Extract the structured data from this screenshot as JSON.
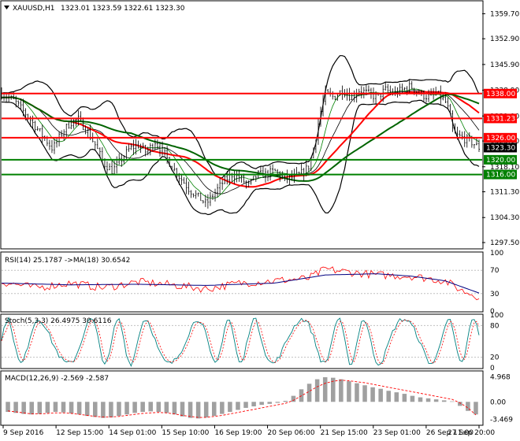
{
  "chart_data": {
    "type": "candlestick",
    "symbol_header": "XAUUSD,H1",
    "ohlc_header": "1323.01 1323.59 1322.61 1323.30",
    "price_axis": {
      "range": [
        1296,
        1363
      ],
      "ticks": [
        "1359.70",
        "1352.90",
        "1345.90",
        "1338.90",
        "1331.90",
        "1325.10",
        "1318.10",
        "1311.30",
        "1304.30",
        "1297.50"
      ],
      "tick_values": [
        1359.7,
        1352.9,
        1345.9,
        1338.9,
        1331.9,
        1325.1,
        1318.1,
        1311.3,
        1304.3,
        1297.5
      ]
    },
    "levels": [
      {
        "label": "1338.00",
        "value": 1338.0,
        "color": "#ff0000"
      },
      {
        "label": "1331.23",
        "value": 1331.23,
        "color": "#ff0000"
      },
      {
        "label": "1326.00",
        "value": 1326.0,
        "color": "#ff0000"
      },
      {
        "label": "1320.00",
        "value": 1320.0,
        "color": "#008000"
      },
      {
        "label": "1316.00",
        "value": 1316.0,
        "color": "#008000"
      }
    ],
    "current_price": {
      "label": "1323.30",
      "value": 1323.3
    },
    "x_labels": [
      "9 Sep 2016",
      "12 Sep 15:00",
      "14 Sep 01:00",
      "15 Sep 10:00",
      "16 Sep 19:00",
      "20 Sep 06:00",
      "21 Sep 15:00",
      "23 Sep 01:00",
      "26 Sep 11:00",
      "27 Sep 20:00"
    ],
    "price_path": [
      [
        0,
        1338
      ],
      [
        3,
        1336
      ],
      [
        6,
        1332
      ],
      [
        8,
        1329
      ],
      [
        10,
        1326
      ],
      [
        12,
        1323
      ],
      [
        14,
        1327
      ],
      [
        16,
        1330
      ],
      [
        18,
        1331
      ],
      [
        20,
        1328
      ],
      [
        22,
        1324
      ],
      [
        24,
        1319
      ],
      [
        26,
        1317
      ],
      [
        28,
        1320
      ],
      [
        30,
        1323
      ],
      [
        32,
        1324
      ],
      [
        34,
        1322
      ],
      [
        36,
        1325
      ],
      [
        38,
        1322
      ],
      [
        40,
        1318
      ],
      [
        42,
        1315
      ],
      [
        44,
        1312
      ],
      [
        46,
        1310
      ],
      [
        48,
        1308
      ],
      [
        50,
        1311
      ],
      [
        52,
        1314
      ],
      [
        54,
        1316
      ],
      [
        56,
        1315
      ],
      [
        58,
        1313
      ],
      [
        60,
        1316
      ],
      [
        62,
        1316
      ],
      [
        64,
        1317
      ],
      [
        66,
        1315
      ],
      [
        68,
        1315
      ],
      [
        70,
        1316
      ],
      [
        72,
        1318
      ],
      [
        73,
        1322
      ],
      [
        74,
        1328
      ],
      [
        75,
        1334
      ],
      [
        76,
        1338
      ],
      [
        78,
        1337
      ],
      [
        80,
        1339
      ],
      [
        82,
        1337
      ],
      [
        84,
        1339
      ],
      [
        86,
        1338
      ],
      [
        88,
        1337
      ],
      [
        90,
        1339
      ],
      [
        92,
        1338
      ],
      [
        94,
        1339
      ],
      [
        96,
        1340
      ],
      [
        98,
        1338
      ],
      [
        100,
        1337
      ],
      [
        102,
        1338
      ],
      [
        104,
        1336
      ],
      [
        105,
        1333
      ],
      [
        106,
        1327
      ],
      [
        108,
        1326
      ],
      [
        110,
        1325
      ],
      [
        112,
        1323.3
      ]
    ],
    "rsi": {
      "header": "RSI(14) 25.1787 ->MA(18) 30.6542",
      "range": [
        0,
        100
      ],
      "ticks": [
        "100",
        "70",
        "30",
        "0"
      ],
      "tick_values": [
        100,
        70,
        30,
        0
      ],
      "points": [
        [
          0,
          50
        ],
        [
          8,
          40
        ],
        [
          16,
          48
        ],
        [
          24,
          40
        ],
        [
          32,
          50
        ],
        [
          40,
          45
        ],
        [
          48,
          38
        ],
        [
          56,
          48
        ],
        [
          64,
          52
        ],
        [
          72,
          56
        ],
        [
          76,
          72
        ],
        [
          80,
          68
        ],
        [
          88,
          62
        ],
        [
          96,
          60
        ],
        [
          104,
          52
        ],
        [
          108,
          35
        ],
        [
          112,
          25
        ]
      ],
      "ma_points": [
        [
          0,
          48
        ],
        [
          16,
          45
        ],
        [
          32,
          46
        ],
        [
          48,
          44
        ],
        [
          64,
          48
        ],
        [
          76,
          62
        ],
        [
          88,
          64
        ],
        [
          96,
          60
        ],
        [
          104,
          52
        ],
        [
          112,
          31
        ]
      ]
    },
    "stoch": {
      "header": "Stoch(5,3,3) 26.4975 30.6116",
      "range": [
        0,
        100
      ],
      "ticks": [
        "100",
        "80",
        "20",
        "0"
      ],
      "tick_values": [
        100,
        80,
        20,
        0
      ]
    },
    "macd": {
      "header": "MACD(12,26,9) -2.569 -2.587",
      "range": [
        -4.5,
        6
      ],
      "ticks": [
        "4.968",
        "0.00",
        "-3.469"
      ],
      "tick_values": [
        4.968,
        0.0,
        -3.469
      ],
      "histogram": [
        -2,
        -2.2,
        -2.4,
        -2.5,
        -2.4,
        -2.2,
        -2,
        -2.1,
        -2.3,
        -2.5,
        -2.8,
        -3,
        -3.2,
        -3.1,
        -2.8,
        -2.5,
        -2.2,
        -2,
        -1.9,
        -2,
        -2.2,
        -2.5,
        -2.9,
        -3.2,
        -3.3,
        -3.1,
        -2.8,
        -2.4,
        -2,
        -1.6,
        -1.2,
        -0.9,
        -0.6,
        -0.4,
        -0.2,
        0.2,
        1.2,
        2.5,
        3.6,
        4.5,
        4.9,
        4.8,
        4.5,
        4.1,
        3.7,
        3.3,
        2.9,
        2.6,
        2.2,
        1.9,
        1.6,
        1.2,
        0.9,
        0.7,
        0.5,
        0.3,
        0.1,
        -0.8,
        -1.8,
        -2.5
      ],
      "signal": [
        -1.8,
        -2,
        -2.2,
        -2.4,
        -2.4,
        -2.3,
        -2.2,
        -2.2,
        -2.3,
        -2.5,
        -2.7,
        -2.9,
        -3,
        -3,
        -2.9,
        -2.7,
        -2.5,
        -2.3,
        -2.2,
        -2.1,
        -2.2,
        -2.4,
        -2.7,
        -2.9,
        -3.1,
        -3.1,
        -2.9,
        -2.7,
        -2.4,
        -2.1,
        -1.8,
        -1.5,
        -1.2,
        -0.9,
        -0.6,
        -0.3,
        0.3,
        1.2,
        2.1,
        3,
        3.7,
        4.1,
        4.3,
        4.2,
        4,
        3.8,
        3.5,
        3.2,
        2.9,
        2.6,
        2.3,
        2,
        1.7,
        1.4,
        1.1,
        0.8,
        0.5,
        -0.2,
        -1.2,
        -2.6
      ]
    }
  }
}
